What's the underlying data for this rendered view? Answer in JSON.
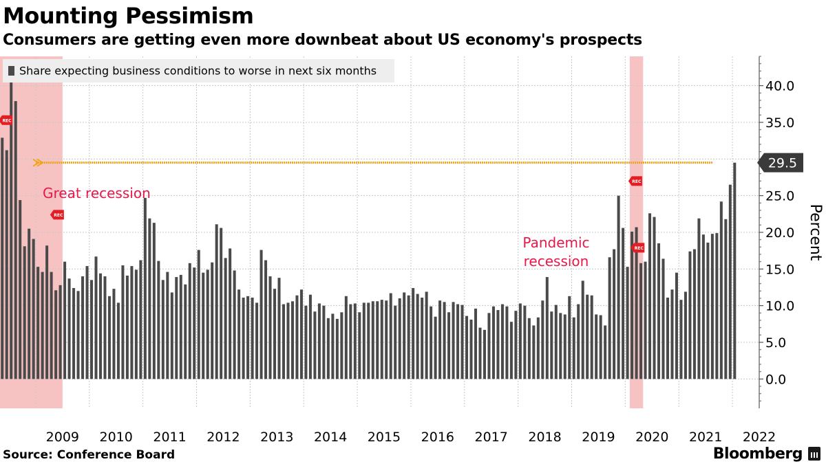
{
  "header": {
    "title": "Mounting Pessimism",
    "subtitle": "Consumers are getting even more downbeat about US economy's prospects"
  },
  "footer": {
    "source": "Source: Conference Board",
    "brand": "Bloomberg"
  },
  "colors": {
    "bar": "#4a4a4a",
    "recession_band": "#f6b7b7",
    "reference_line": "#f2a51a",
    "annotation": "#e8174a",
    "rec_marker": "#e31d24",
    "last_value_box": "#3a3a3a",
    "legend_bg": "#eeeeee"
  },
  "chart_data": {
    "type": "bar",
    "legend": [
      "Share expecting business conditions to worse in next six months"
    ],
    "legend_position": "top-left",
    "ylabel": "Percent",
    "ylim": [
      -4,
      44
    ],
    "y_ticks": [
      "0.0",
      "5.0",
      "10.0",
      "15.0",
      "20.0",
      "25.0",
      "30.0",
      "35.0",
      "40.0"
    ],
    "y_tick_values": [
      0,
      5,
      10,
      15,
      20,
      25,
      30,
      35,
      40
    ],
    "y_axis_side": "right",
    "grid": true,
    "x_ticks": [
      "2009",
      "2010",
      "2011",
      "2012",
      "2013",
      "2014",
      "2015",
      "2016",
      "2017",
      "2018",
      "2019",
      "2020",
      "2021",
      "2022"
    ],
    "x_start": "2008-05",
    "x_end": "2022-06",
    "series": [
      {
        "name": "Share expecting business conditions to worse in next six months",
        "values": [
          32.9,
          31.2,
          40.7,
          37.9,
          24.4,
          18.1,
          20.5,
          19.1,
          15.3,
          14.6,
          18.2,
          14.6,
          12.1,
          12.8,
          16.0,
          13.7,
          12.4,
          12.0,
          14.0,
          15.4,
          13.5,
          16.7,
          14.4,
          14.0,
          11.3,
          12.3,
          10.4,
          15.5,
          14.1,
          15.4,
          14.9,
          16.2,
          24.7,
          21.9,
          21.3,
          16.1,
          13.5,
          14.6,
          11.8,
          13.9,
          14.2,
          12.9,
          15.8,
          15.2,
          17.6,
          14.5,
          14.9,
          15.9,
          21.1,
          20.6,
          16.5,
          17.8,
          14.8,
          12.2,
          11.1,
          11.3,
          11.1,
          10.4,
          17.6,
          16.2,
          14.0,
          12.3,
          13.8,
          10.2,
          10.4,
          10.6,
          11.4,
          12.2,
          10.0,
          11.5,
          9.2,
          10.3,
          10.0,
          8.3,
          8.9,
          8.2,
          9.1,
          11.3,
          10.2,
          10.3,
          9.1,
          10.4,
          10.4,
          10.6,
          10.6,
          10.8,
          10.7,
          11.7,
          10.0,
          11.0,
          11.8,
          11.4,
          12.4,
          11.6,
          11.1,
          11.9,
          9.9,
          8.5,
          10.7,
          10.5,
          9.1,
          10.5,
          10.2,
          10.1,
          8.6,
          8.1,
          9.6,
          7.0,
          6.7,
          9.0,
          9.9,
          9.4,
          10.2,
          9.9,
          7.8,
          9.3,
          10.3,
          10.0,
          8.3,
          7.3,
          8.4,
          10.7,
          13.9,
          9.2,
          10.1,
          9.0,
          8.8,
          11.3,
          8.4,
          10.2,
          13.4,
          11.5,
          11.4,
          8.8,
          8.7,
          7.3,
          16.6,
          17.7,
          25.0,
          20.6,
          15.3,
          20.1,
          20.7,
          15.8,
          16.0,
          22.6,
          22.1,
          18.5,
          16.4,
          11.1,
          12.2,
          14.5,
          10.8,
          11.9,
          17.4,
          17.7,
          21.9,
          19.7,
          18.6,
          19.8,
          19.9,
          24.2,
          21.8,
          26.5,
          29.5
        ]
      }
    ],
    "last_value_label": "29.5",
    "reference_line": {
      "value": 29.5
    },
    "recession_bands": [
      {
        "start": "2008-05",
        "end": "2009-06",
        "rec_marker_values": [
          35.3,
          22.4
        ]
      },
      {
        "start": "2020-02",
        "end": "2020-04",
        "rec_marker_values": [
          27.0,
          17.9
        ]
      }
    ],
    "rec_marker_label": "REC",
    "annotations": [
      {
        "text": "Great recession"
      },
      {
        "text": "Pandemic recession"
      }
    ]
  }
}
